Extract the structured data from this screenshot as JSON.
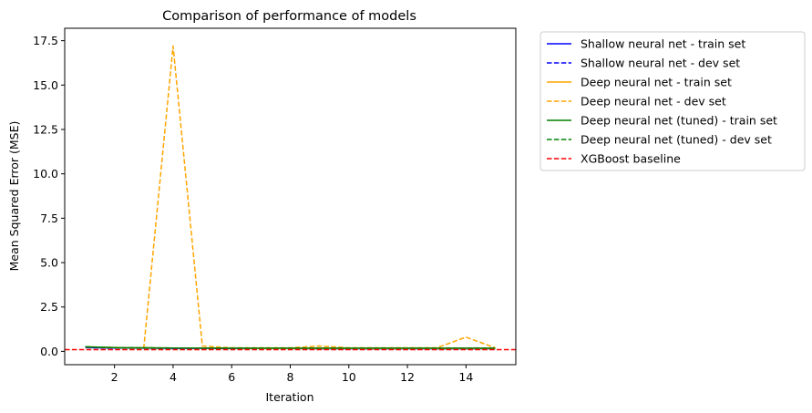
{
  "chart_data": {
    "type": "line",
    "title": "Comparison of performance of models",
    "xlabel": "Iteration",
    "ylabel": "Mean Squared Error (MSE)",
    "xlim": [
      0.3,
      15.7
    ],
    "ylim": [
      -0.75,
      18.2
    ],
    "xticks": [
      2,
      4,
      6,
      8,
      10,
      12,
      14
    ],
    "yticks": [
      0.0,
      2.5,
      5.0,
      7.5,
      10.0,
      12.5,
      15.0,
      17.5
    ],
    "ytick_labels": [
      "0.0",
      "2.5",
      "5.0",
      "7.5",
      "10.0",
      "12.5",
      "15.0",
      "17.5"
    ],
    "grid": false,
    "legend_position": "outside-right-top",
    "x": [
      1,
      2,
      3,
      4,
      5,
      6,
      7,
      8,
      9,
      10,
      11,
      12,
      13,
      14,
      15
    ],
    "series": [
      {
        "name": "Shallow neural net - train set",
        "color": "#0000ff",
        "dash": false,
        "values": [
          0.22,
          0.19,
          0.18,
          0.17,
          0.17,
          0.16,
          0.16,
          0.16,
          0.15,
          0.15,
          0.15,
          0.15,
          0.15,
          0.15,
          0.15
        ]
      },
      {
        "name": "Shallow neural net - dev set",
        "color": "#0000ff",
        "dash": true,
        "values": [
          0.21,
          0.19,
          0.18,
          0.17,
          0.17,
          0.16,
          0.16,
          0.16,
          0.16,
          0.16,
          0.16,
          0.16,
          0.16,
          0.16,
          0.16
        ]
      },
      {
        "name": "Deep neural net - train set",
        "color": "#ffa500",
        "dash": false,
        "values": [
          0.25,
          0.21,
          0.2,
          0.19,
          0.18,
          0.18,
          0.17,
          0.17,
          0.17,
          0.17,
          0.17,
          0.17,
          0.17,
          0.17,
          0.17
        ]
      },
      {
        "name": "Deep neural net - dev set",
        "color": "#ffa500",
        "dash": true,
        "values": [
          0.25,
          0.22,
          0.2,
          17.2,
          0.3,
          0.2,
          0.2,
          0.2,
          0.3,
          0.2,
          0.2,
          0.2,
          0.2,
          0.8,
          0.2
        ]
      },
      {
        "name": "Deep neural net (tuned) - train set",
        "color": "#008000",
        "dash": false,
        "values": [
          0.26,
          0.21,
          0.2,
          0.19,
          0.19,
          0.18,
          0.18,
          0.18,
          0.18,
          0.18,
          0.18,
          0.18,
          0.18,
          0.18,
          0.18
        ]
      },
      {
        "name": "Deep neural net (tuned) - dev set",
        "color": "#008000",
        "dash": true,
        "values": [
          0.25,
          0.21,
          0.2,
          0.19,
          0.19,
          0.19,
          0.19,
          0.19,
          0.19,
          0.19,
          0.19,
          0.19,
          0.19,
          0.19,
          0.19
        ]
      }
    ],
    "baseline": {
      "name": "XGBoost baseline",
      "color": "#ff0000",
      "dash": true,
      "value": 0.1
    }
  }
}
